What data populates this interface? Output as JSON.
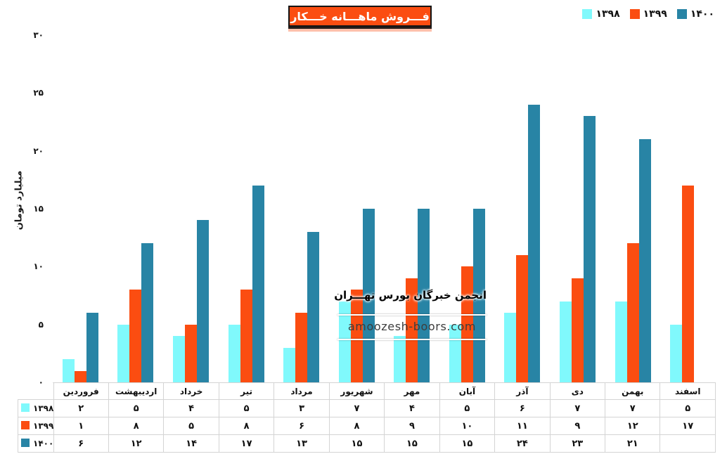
{
  "title": "فـــروش ماهـــانه خـــکار",
  "legend": [
    {
      "key": "1398",
      "label": "۱۳۹۸",
      "color": "#80F9FC"
    },
    {
      "key": "1399",
      "label": "۱۳۹۹",
      "color": "#FB4D11"
    },
    {
      "key": "1400",
      "label": "۱۴۰۰",
      "color": "#2884A5"
    }
  ],
  "y_axis": {
    "label": "میلیارد تومان",
    "ticks": [
      {
        "label": "۳۰",
        "value": 30
      },
      {
        "label": "۲۵",
        "value": 25
      },
      {
        "label": "۲۰",
        "value": 20
      },
      {
        "label": "۱۵",
        "value": 15
      },
      {
        "label": "۱۰",
        "value": 10
      },
      {
        "label": "۵",
        "value": 5
      },
      {
        "label": "۰",
        "value": 0
      }
    ]
  },
  "watermark": {
    "line1": "انجمن خبرگان بورس تهـــران",
    "line2": "amoozesh-boors.com"
  },
  "chart_data": {
    "type": "bar",
    "title": "فـــروش ماهـــانه خـــکار",
    "xlabel": "",
    "ylabel": "میلیارد تومان",
    "ylim": [
      0,
      30
    ],
    "grid": false,
    "legend_position": "top-right",
    "categories": [
      "فروردین",
      "اردیبهشت",
      "خرداد",
      "تیر",
      "مرداد",
      "شهریور",
      "مهر",
      "آبان",
      "آذر",
      "دی",
      "بهمن",
      "اسفند"
    ],
    "series": [
      {
        "key": "1398",
        "name": "۱۳۹۸",
        "color": "#80F9FC",
        "values": [
          2,
          5,
          4,
          5,
          3,
          7,
          4,
          5,
          6,
          7,
          7,
          5
        ]
      },
      {
        "key": "1399",
        "name": "۱۳۹۹",
        "color": "#FB4D11",
        "values": [
          1,
          8,
          5,
          8,
          6,
          8,
          9,
          10,
          11,
          9,
          12,
          17
        ]
      },
      {
        "key": "1400",
        "name": "۱۴۰۰",
        "color": "#2884A5",
        "values": [
          6,
          12,
          14,
          17,
          13,
          15,
          15,
          15,
          24,
          23,
          21,
          null
        ]
      }
    ]
  },
  "table": {
    "months": [
      "فروردین",
      "اردیبهشت",
      "خرداد",
      "تیر",
      "مرداد",
      "شهریور",
      "مهر",
      "آبان",
      "آذر",
      "دی",
      "بهمن",
      "اسفند"
    ],
    "rows": [
      {
        "key": "1398",
        "label": "۱۳۹۸",
        "color": "#80F9FC",
        "cells": [
          "۲",
          "۵",
          "۴",
          "۵",
          "۳",
          "۷",
          "۴",
          "۵",
          "۶",
          "۷",
          "۷",
          "۵"
        ]
      },
      {
        "key": "1399",
        "label": "۱۳۹۹",
        "color": "#FB4D11",
        "cells": [
          "۱",
          "۸",
          "۵",
          "۸",
          "۶",
          "۸",
          "۹",
          "۱۰",
          "۱۱",
          "۹",
          "۱۲",
          "۱۷"
        ]
      },
      {
        "key": "1400",
        "label": "۱۴۰۰",
        "color": "#2884A5",
        "cells": [
          "۶",
          "۱۲",
          "۱۴",
          "۱۷",
          "۱۳",
          "۱۵",
          "۱۵",
          "۱۵",
          "۲۴",
          "۲۳",
          "۲۱",
          ""
        ]
      }
    ]
  }
}
